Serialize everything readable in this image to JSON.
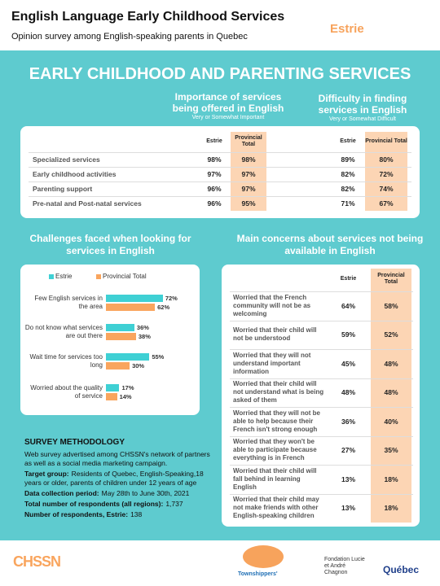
{
  "header": {
    "title": "English Language Early Childhood Services",
    "subtitle": "Opinion survey among English-speaking parents in Quebec",
    "region": "Estrie"
  },
  "banner": "EARLY CHILDHOOD AND PARENTING SERVICES",
  "services_table": {
    "importance_heading": "Importance of services being offered in English",
    "importance_note": "Very or Somewhat Important",
    "difficulty_heading": "Difficulty in finding services in English",
    "difficulty_note": "Very or Somewhat Difficult",
    "columns": [
      "Estrie",
      "Provincial Total",
      "Estrie",
      "Provincial Total"
    ],
    "rows": [
      [
        "Specialized services",
        "98%",
        "98%",
        "89%",
        "80%"
      ],
      [
        "Early childhood activities",
        "97%",
        "97%",
        "82%",
        "72%"
      ],
      [
        "Parenting support",
        "96%",
        "97%",
        "82%",
        "74%"
      ],
      [
        "Pre-natal and Post-natal services",
        "96%",
        "95%",
        "71%",
        "67%"
      ]
    ]
  },
  "challenges": {
    "type": "bar",
    "title": "Challenges faced when looking for services in English",
    "categories": [
      "Few English services in the area",
      "Do not know what services are out there",
      "Wait time for services too long",
      "Worried about the quality of service"
    ],
    "series": [
      {
        "name": "Estrie",
        "color": "#3fd0d4",
        "values": [
          72,
          36,
          55,
          17
        ],
        "value_labels": [
          "72%",
          "36%",
          "55%",
          "17%"
        ]
      },
      {
        "name": "Provincial Total",
        "color": "#f9a55e",
        "values": [
          62,
          38,
          30,
          14
        ],
        "value_labels": [
          "62%",
          "38%",
          "30%",
          "14%"
        ]
      }
    ]
  },
  "concerns": {
    "title": "Main concerns about services not being available in English",
    "columns": [
      "Estrie",
      "Provincial Total"
    ],
    "rows": [
      [
        "Worried that the French community will not be as welcoming",
        "64%",
        "58%"
      ],
      [
        "Worried that their child will not be understood",
        "59%",
        "52%"
      ],
      [
        "Worried that they will not understand important information",
        "45%",
        "48%"
      ],
      [
        "Worried that their child will not understand what is being asked of them",
        "48%",
        "48%"
      ],
      [
        "Worried that they will not be able to help because their French isn't strong enough",
        "36%",
        "40%"
      ],
      [
        "Worried that they won't be able to participate because everything is in French",
        "27%",
        "35%"
      ],
      [
        "Worried that their child will fall behind in learning English",
        "13%",
        "18%"
      ],
      [
        "Worried that their child may not make friends with other English-speaking children",
        "13%",
        "18%"
      ]
    ]
  },
  "methodology": {
    "heading": "SURVEY METHODOLOGY",
    "intro": "Web survey advertised among CHSSN's network of partners as well as a social media marketing campaign.",
    "items": [
      {
        "label": "Target group:",
        "text": "Residents of Quebec, English-Speaking,18 years or older, parents of children under 12 years of age"
      },
      {
        "label": "Data collection period:",
        "text": "May 28th to June 30th, 2021"
      },
      {
        "label": "Total number of respondents (all regions):",
        "text": "1,737"
      },
      {
        "label": "Number of respondents, Estrie:",
        "text": "138"
      }
    ]
  },
  "footer": {
    "logos": [
      "CHSSN",
      "Townshippers'",
      "Fondation Lucie et André Chagnon",
      "Québec"
    ]
  }
}
